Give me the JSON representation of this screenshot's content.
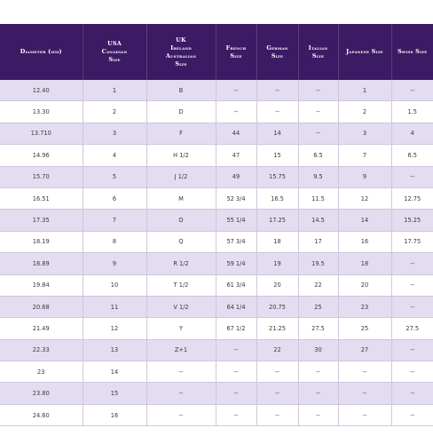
{
  "headers": [
    "Diameter (mm)",
    "USA\nCanadian\nSize",
    "UK\nIreland\nAustralian\nSize",
    "French\nSize",
    "German\nSize",
    "Italian\nSize",
    "Japanese Size",
    "Swiss Size"
  ],
  "rows": [
    [
      "12.40",
      "1",
      "B",
      "--",
      "--",
      "--",
      "1",
      "--"
    ],
    [
      "13.30",
      "2",
      "D",
      "--",
      "--",
      "--",
      "2",
      "1.5"
    ],
    [
      "13.710",
      "3",
      "F",
      "44",
      "14",
      "--",
      "3",
      "4"
    ],
    [
      "14.96",
      "4",
      "H 1/2",
      "47",
      "15",
      "6.5",
      "7",
      "6.5"
    ],
    [
      "15.70",
      "5",
      "J 1/2",
      "49",
      "15.75",
      "9.5",
      "9",
      "--"
    ],
    [
      "16.51",
      "6",
      "M",
      "52 3/4",
      "16.5",
      "11.5",
      "12",
      "12.75"
    ],
    [
      "17.35",
      "7",
      "O",
      "55 1/4",
      "17.25",
      "14.5",
      "14",
      "15.25"
    ],
    [
      "18.19",
      "8",
      "Q",
      "57 3/4",
      "18",
      "17",
      "16",
      "17.75"
    ],
    [
      "18.89",
      "9",
      "R 1/2",
      "59 1/4",
      "19",
      "19.5",
      "18",
      "--"
    ],
    [
      "19.84",
      "10",
      "T 1/2",
      "61 3/4",
      "20",
      "22",
      "20",
      "--"
    ],
    [
      "20.68",
      "11",
      "V 1/2",
      "64 1/4",
      "20.75",
      "25",
      "23",
      "--"
    ],
    [
      "21.49",
      "12",
      "Y",
      "67 1/2",
      "21.25",
      "27.5",
      "25",
      "27.5"
    ],
    [
      "22.33",
      "13",
      "Z+1",
      "--",
      "22",
      "30",
      "27",
      "--"
    ],
    [
      "23",
      "14",
      "--",
      "--",
      "--",
      "--",
      "--",
      "--"
    ],
    [
      "23.80",
      "15",
      "--",
      "--",
      "--",
      "--",
      "--",
      "--"
    ],
    [
      "24.60",
      "16",
      "--",
      "--",
      "--",
      "--",
      "--",
      "--"
    ]
  ],
  "colors": {
    "header_bg": "#3d1a64",
    "header_text": "#ffffff",
    "row_shade": "#e4dcf0",
    "row_plain": "#ffffff",
    "grid": "#cfc6dc"
  }
}
